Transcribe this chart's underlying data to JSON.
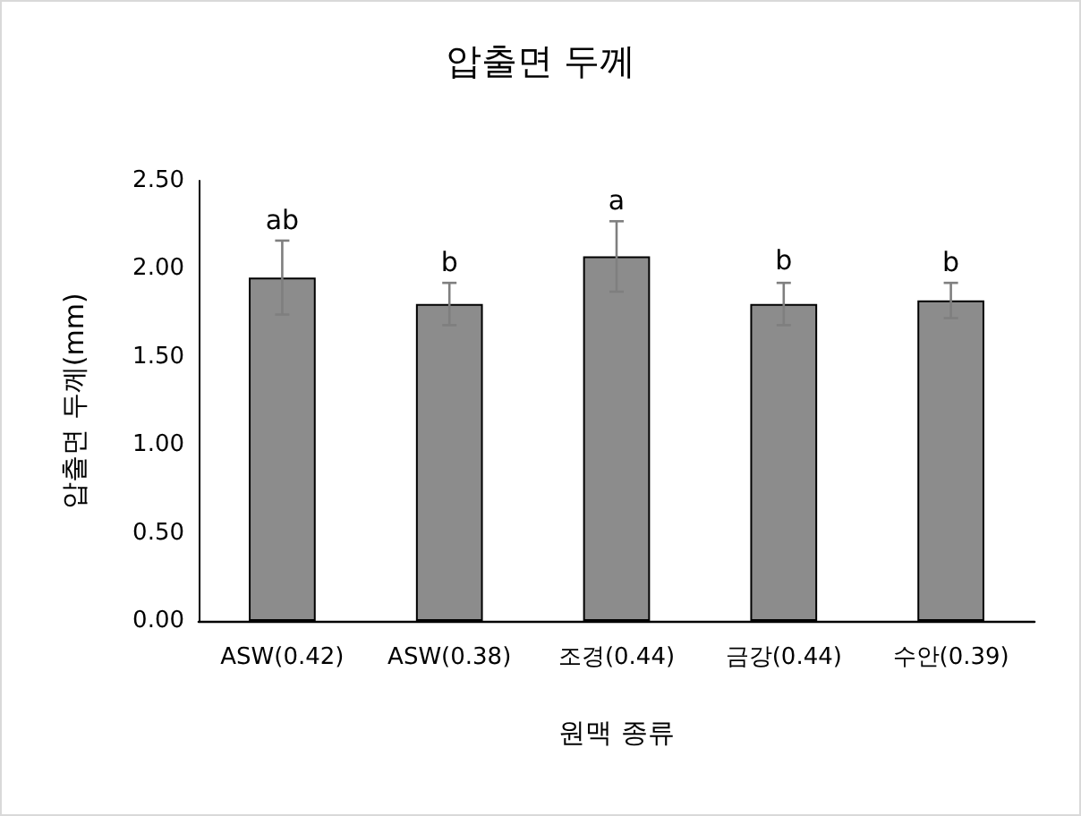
{
  "chart_data": {
    "type": "bar",
    "title": "압출면 두께",
    "xlabel": "원맥 종류",
    "ylabel": "압출면 두께(mm)",
    "categories": [
      "ASW(0.42)",
      "ASW(0.38)",
      "조경(0.44)",
      "금강(0.44)",
      "수안(0.39)"
    ],
    "values": [
      1.95,
      1.8,
      2.07,
      1.8,
      1.82
    ],
    "errors": [
      0.21,
      0.12,
      0.2,
      0.12,
      0.1
    ],
    "color": "#8c8c8c",
    "ylim": [
      0,
      2.5
    ],
    "yticks": [
      {
        "value": 0,
        "label": "0.00"
      },
      {
        "value": 0.5,
        "label": "0.50"
      },
      {
        "value": 1,
        "label": "1.00"
      },
      {
        "value": 1.5,
        "label": "1.50"
      },
      {
        "value": 2,
        "label": "2.00"
      },
      {
        "value": 2.5,
        "label": "2.50"
      }
    ],
    "grid": false,
    "annotations": [
      {
        "text": "ab",
        "x": "ASW(0.42)",
        "y": 2.16
      },
      {
        "text": "b",
        "x": "ASW(0.38)",
        "y": 1.92
      },
      {
        "text": "a",
        "x": "조경(0.44)",
        "y": 2.27
      },
      {
        "text": "b",
        "x": "금강(0.44)",
        "y": 1.93
      },
      {
        "text": "b",
        "x": "수안(0.39)",
        "y": 1.92
      }
    ]
  }
}
